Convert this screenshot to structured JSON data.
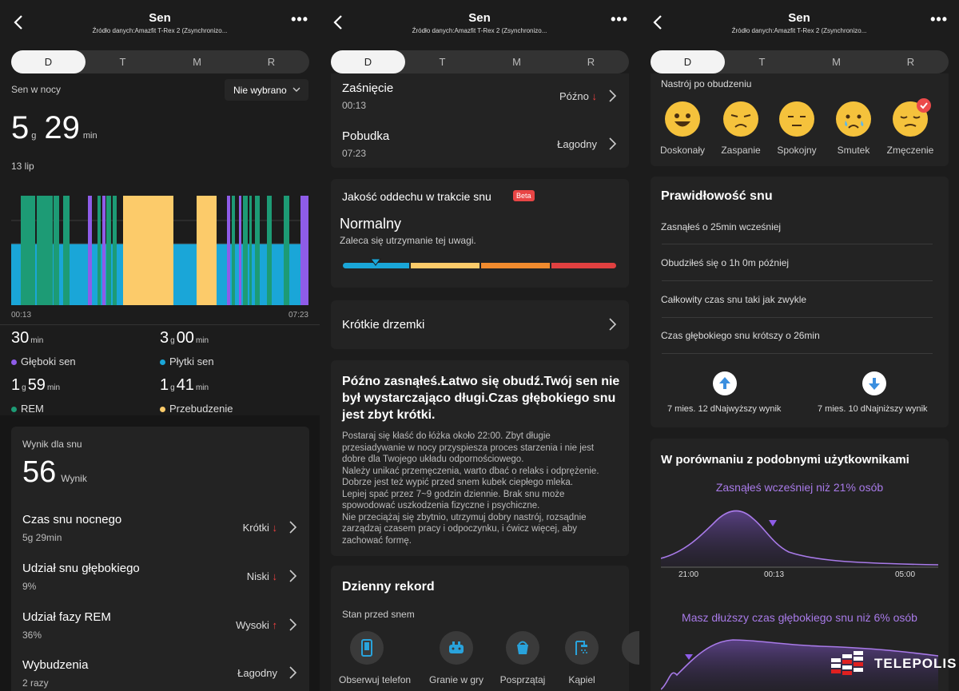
{
  "header": {
    "title": "Sen",
    "subtitle": "Źródło danych:Amazfit T-Rex 2 (Zsynchronizo..."
  },
  "tabs": [
    "D",
    "T",
    "M",
    "R"
  ],
  "panel1": {
    "night_label": "Sen w nocy",
    "dropdown": "Nie wybrano",
    "hours": "5",
    "h_unit": "g",
    "minutes": "29",
    "m_unit": "min",
    "date": "13 lip",
    "chart_start": "00:13",
    "chart_end": "07:23",
    "stats": [
      {
        "parts": [
          {
            "n": "30",
            "u": "min"
          }
        ],
        "label": "Głęboki sen",
        "color": "#8e5ce8"
      },
      {
        "parts": [
          {
            "n": "3",
            "u": "g"
          },
          {
            "n": "00",
            "u": "min"
          }
        ],
        "label": "Płytki sen",
        "color": "#1aa6d8"
      },
      {
        "parts": [
          {
            "n": "1",
            "u": "g"
          },
          {
            "n": "59",
            "u": "min"
          }
        ],
        "label": "REM",
        "color": "#1d9b75"
      },
      {
        "parts": [
          {
            "n": "1",
            "u": "g"
          },
          {
            "n": "41",
            "u": "min"
          }
        ],
        "label": "Przebudzenie",
        "color": "#fccb6a"
      }
    ],
    "score_label": "Wynik dla snu",
    "score": "56",
    "score_unit": "Wynik",
    "rows": [
      {
        "label": "Czas snu nocnego",
        "value": "5g 29min",
        "status": "Krótki",
        "arrow": "↓"
      },
      {
        "label": "Udział snu głębokiego",
        "value": "9%",
        "status": "Niski",
        "arrow": "↓"
      },
      {
        "label": "Udział fazy REM",
        "value": "36%",
        "status": "Wysoki",
        "arrow": "↑"
      },
      {
        "label": "Wybudzenia",
        "value": "2 razy",
        "status": "Łagodny",
        "arrow": ""
      }
    ]
  },
  "panel2": {
    "rows": [
      {
        "label": "Zaśnięcie",
        "value": "00:13",
        "status": "Późno",
        "arrow": "↓"
      },
      {
        "label": "Pobudka",
        "value": "07:23",
        "status": "Łagodny",
        "arrow": ""
      }
    ],
    "breath_title": "Jakość oddechu w trakcie snu",
    "beta": "Beta",
    "breath_value": "Normalny",
    "breath_desc": "Zaleca się utrzymanie tej uwagi.",
    "naps": "Krótkie drzemki",
    "advice_title": "Późno zasnąłeś.Łatwo się obudź.Twój sen nie był wystarczająco długi.Czas głębokiego snu jest zbyt krótki.",
    "advice_lines": [
      "Postaraj się kłaść do łóżka około 22:00. Zbyt długie",
      "przesiadywanie w nocy przyspiesza proces starzenia i nie jest",
      "dobre dla Twojego układu odpornościowego.",
      "Należy unikać przemęczenia, warto dbać o relaks i odprężenie.",
      "Dobrze jest też wypić przed snem kubek ciepłego mleka.",
      "Lepiej spać przez 7~9 godzin dziennie. Brak snu może",
      "spowodować uszkodzenia fizyczne i psychiczne.",
      "Nie przeciążaj się zbytnio, utrzymuj dobry nastrój, rozsądnie",
      "zarządzaj czasem pracy i odpoczynku, i ćwicz więcej, aby",
      "zachować formę."
    ],
    "record_title": "Dzienny rekord",
    "record_sub": "Stan przed snem",
    "icons": [
      "Obserwuj telefon",
      "Granie w gry",
      "Posprzątaj",
      "Kąpiel"
    ]
  },
  "panel3": {
    "mood_title": "Nastrój po obudzeniu",
    "moods": [
      "Doskonały",
      "Zaspanie",
      "Spokojny",
      "Smutek",
      "Zmęczenie"
    ],
    "reg_title": "Prawidłowość snu",
    "reg_items": [
      "Zasnąłeś o 25min wcześniej",
      "Obudziłeś się o 1h 0m później",
      "Całkowity czas snu taki jak zwykle",
      "Czas głębokiego snu krótszy o 26min"
    ],
    "best": "7 mies. 12 dNajwyższy wynik",
    "worst": "7 mies. 10 dNajniższy wynik",
    "cmp_title": "W porównaniu z podobnymi użytkownikami",
    "cmp1": "Zasnąłeś wcześniej niż 21% osób",
    "cmp_ticks": [
      "21:00",
      "00:13",
      "05:00"
    ],
    "cmp2": "Masz dłuższy czas głębokiego snu niż 6% osób"
  },
  "watermark": "TELEPOLIS",
  "chart_data": {
    "type": "area",
    "title": "",
    "x_start": "00:13",
    "x_end": "07:23",
    "levels": [
      "Płytki sen",
      "REM",
      "Przebudzenie",
      "Głęboki sen"
    ],
    "bands": [
      {
        "s": 0,
        "e": 12,
        "c": "#1aa6d8",
        "t": "shallow"
      },
      {
        "s": 12,
        "e": 30,
        "c": "#1d9b75",
        "t": "rem"
      },
      {
        "s": 32,
        "e": 52,
        "c": "#1d9b75",
        "t": "rem"
      },
      {
        "s": 53,
        "e": 60,
        "c": "#1d9b75",
        "t": "rem"
      },
      {
        "s": 65,
        "e": 73,
        "c": "#1d9b75",
        "t": "rem"
      },
      {
        "s": 96,
        "e": 101,
        "c": "#8e5ce8",
        "t": "deep"
      },
      {
        "s": 108,
        "e": 112,
        "c": "#1d9b75",
        "t": "rem"
      },
      {
        "s": 114,
        "e": 118,
        "c": "#8e5ce8",
        "t": "deep"
      },
      {
        "s": 119,
        "e": 125,
        "c": "#1d9b75",
        "t": "rem"
      },
      {
        "s": 127,
        "e": 132,
        "c": "#1d9b75",
        "t": "rem"
      },
      {
        "s": 140,
        "e": 203,
        "c": "#fccb6a",
        "t": "wake"
      },
      {
        "s": 232,
        "e": 257,
        "c": "#fccb6a",
        "t": "wake"
      },
      {
        "s": 270,
        "e": 274,
        "c": "#8e5ce8",
        "t": "deep"
      },
      {
        "s": 276,
        "e": 280,
        "c": "#1d9b75",
        "t": "rem"
      },
      {
        "s": 285,
        "e": 288,
        "c": "#8e5ce8",
        "t": "deep"
      },
      {
        "s": 290,
        "e": 296,
        "c": "#1d9b75",
        "t": "rem"
      },
      {
        "s": 298,
        "e": 301,
        "c": "#1d9b75",
        "t": "rem"
      },
      {
        "s": 305,
        "e": 311,
        "c": "#1d9b75",
        "t": "rem"
      },
      {
        "s": 320,
        "e": 326,
        "c": "#1d9b75",
        "t": "rem"
      },
      {
        "s": 341,
        "e": 348,
        "c": "#1d9b75",
        "t": "rem"
      },
      {
        "s": 362,
        "e": 372,
        "c": "#8e5ce8",
        "t": "deep"
      }
    ]
  }
}
